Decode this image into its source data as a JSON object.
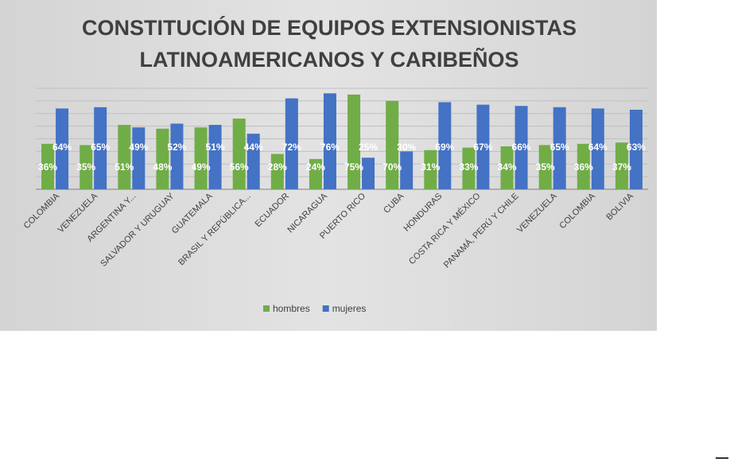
{
  "chart_data": {
    "type": "bar",
    "title_lines": [
      "CONSTITUCIÓN DE EQUIPOS EXTENSIONISTAS",
      "LATINOAMERICANOS Y CARIBEÑOS"
    ],
    "categories": [
      "COLOMBIA",
      "VENEZUELA",
      "ARGENTINA Y...",
      "SALVADOR Y URUGUAY",
      "GUATEMALA",
      "BRASIL Y REPÚBLICA...",
      "ECUADOR",
      "NICARAGUA",
      "PUERTO RICO",
      "CUBA",
      "HONDURAS",
      "COSTA RICA Y MÉXICO",
      "PANAMÁ, PERÚ Y CHILE",
      "VENEZUELA",
      "COLOMBIA",
      "BOLIVIA"
    ],
    "series": [
      {
        "name": "hombres",
        "color": "#70ad47",
        "values": [
          36,
          35,
          51,
          48,
          49,
          56,
          28,
          24,
          75,
          70,
          31,
          33,
          34,
          35,
          36,
          37
        ]
      },
      {
        "name": "mujeres",
        "color": "#4472c4",
        "values": [
          64,
          65,
          49,
          52,
          51,
          44,
          72,
          76,
          25,
          30,
          69,
          67,
          66,
          65,
          64,
          63
        ]
      }
    ],
    "value_suffix": "%",
    "ylim": [
      0,
      80
    ],
    "gridlines": true,
    "legend_position": "bottom",
    "background": "#d9d9d9"
  }
}
